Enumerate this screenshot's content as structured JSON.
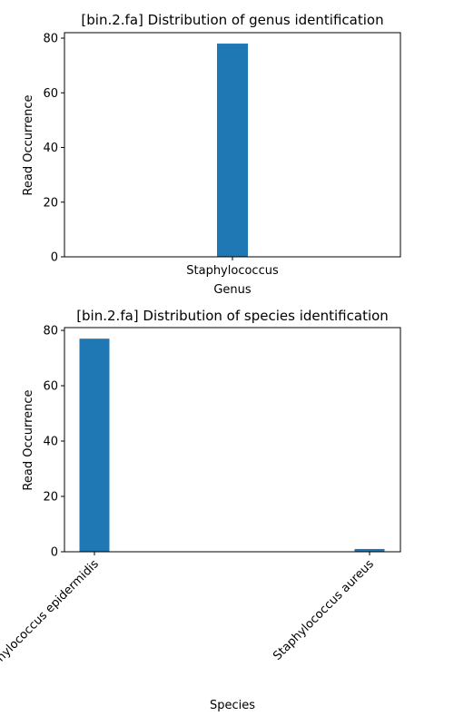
{
  "chart_data": [
    {
      "type": "bar",
      "title": "[bin.2.fa] Distribution of genus identification",
      "xlabel": "Genus",
      "ylabel": "Read Occurrence",
      "categories": [
        "Staphylococcus"
      ],
      "values": [
        78
      ],
      "ylim": [
        0,
        82
      ],
      "yticks": [
        0,
        20,
        40,
        60,
        80
      ],
      "xtick_rotation": 0,
      "color": "#1f77b4",
      "grid": false,
      "legend": "none"
    },
    {
      "type": "bar",
      "title": "[bin.2.fa] Distribution of species identification",
      "xlabel": "Species",
      "ylabel": "Read Occurrence",
      "categories": [
        "Staphylococcus epidermidis",
        "Staphylococcus aureus"
      ],
      "values": [
        77,
        1
      ],
      "ylim": [
        0,
        81
      ],
      "yticks": [
        0,
        20,
        40,
        60,
        80
      ],
      "xtick_rotation": -45,
      "color": "#1f77b4",
      "grid": false,
      "legend": "none"
    }
  ]
}
